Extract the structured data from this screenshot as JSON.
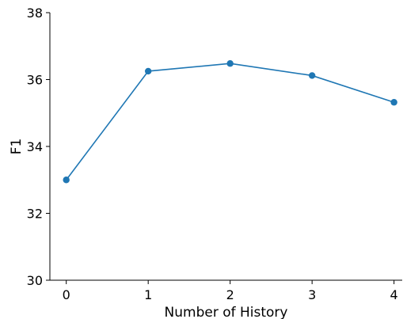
{
  "chart_data": {
    "type": "line",
    "title": "",
    "xlabel": "Number of History",
    "ylabel": "F1",
    "x": [
      0,
      1,
      2,
      3,
      4
    ],
    "xticks": [
      "0",
      "1",
      "2",
      "3",
      "4"
    ],
    "yticks": [
      "30",
      "32",
      "34",
      "36",
      "38"
    ],
    "ylim": [
      30,
      38
    ],
    "xlim": [
      -0.2,
      4.1
    ],
    "grid": false,
    "series": [
      {
        "values": [
          33.0,
          36.25,
          36.48,
          36.12,
          35.32
        ],
        "color": "#1f77b4",
        "marker": "circle"
      }
    ]
  }
}
